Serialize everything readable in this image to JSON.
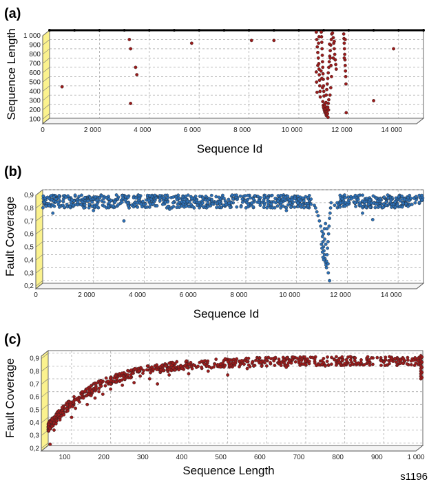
{
  "footer_text": "s1196",
  "colors": {
    "red": "#9b1b1b",
    "blue": "#2c6fb5",
    "yellow": "#fbf28e"
  },
  "chart_data": [
    {
      "id": "a",
      "panel_label": "(a)",
      "type": "scatter",
      "xlabel": "Sequence Id",
      "ylabel": "Sequence Length",
      "xlim": [
        0,
        15000
      ],
      "ylim": [
        50,
        1000
      ],
      "xticks": [
        0,
        2000,
        4000,
        6000,
        8000,
        10000,
        12000,
        14000
      ],
      "xtick_labels": [
        "0",
        "2 000",
        "4 000",
        "6 000",
        "8 000",
        "10 000",
        "12 000",
        "14 000"
      ],
      "yticks": [
        100,
        200,
        300,
        400,
        500,
        600,
        700,
        800,
        900,
        1000
      ],
      "ytick_labels": [
        "100",
        "200",
        "300",
        "400",
        "500",
        "600",
        "700",
        "800",
        "900",
        "1 000"
      ],
      "grid": true,
      "series": [
        {
          "color": "#000000",
          "points": [
            [
              0,
              1000
            ],
            [
              1000,
              1000
            ],
            [
              2000,
              1000
            ],
            [
              3000,
              1000
            ],
            [
              4000,
              1000
            ],
            [
              5000,
              1000
            ],
            [
              6000,
              1000
            ],
            [
              7000,
              1000
            ],
            [
              8000,
              1000
            ],
            [
              9000,
              1000
            ],
            [
              10000,
              1000
            ],
            [
              11000,
              1000
            ],
            [
              12000,
              1000
            ],
            [
              13000,
              1000
            ],
            [
              14000,
              1000
            ],
            [
              15000,
              1000
            ]
          ]
        },
        {
          "color": "#9b1b1b",
          "points": [
            [
              500,
              390
            ],
            [
              3200,
              900
            ],
            [
              3250,
              800
            ],
            [
              3250,
              210
            ],
            [
              3450,
              600
            ],
            [
              3500,
              520
            ],
            [
              5700,
              860
            ],
            [
              8100,
              890
            ],
            [
              9000,
              890
            ],
            [
              13000,
              240
            ],
            [
              13800,
              800
            ],
            [
              10700,
              980
            ],
            [
              10720,
              900
            ],
            [
              10740,
              820
            ],
            [
              10760,
              760
            ],
            [
              10780,
              700
            ],
            [
              10800,
              640
            ],
            [
              10810,
              580
            ],
            [
              10820,
              520
            ],
            [
              10830,
              460
            ],
            [
              10840,
              400
            ],
            [
              10850,
              340
            ],
            [
              10860,
              280
            ],
            [
              10700,
              550
            ],
            [
              10710,
              440
            ],
            [
              10730,
              330
            ],
            [
              10760,
              620
            ],
            [
              10790,
              860
            ],
            [
              10810,
              930
            ],
            [
              10900,
              980
            ],
            [
              10910,
              930
            ],
            [
              10920,
              870
            ],
            [
              10930,
              800
            ],
            [
              10940,
              730
            ],
            [
              10950,
              660
            ],
            [
              10960,
              600
            ],
            [
              10970,
              530
            ],
            [
              10980,
              470
            ],
            [
              10990,
              400
            ],
            [
              11000,
              340
            ],
            [
              11010,
              290
            ],
            [
              10890,
              560
            ],
            [
              10920,
              480
            ],
            [
              10950,
              380
            ],
            [
              10960,
              230
            ],
            [
              10980,
              190
            ],
            [
              11000,
              160
            ],
            [
              11020,
              140
            ],
            [
              11040,
              120
            ],
            [
              11060,
              110
            ],
            [
              11080,
              100
            ],
            [
              11100,
              80
            ],
            [
              11120,
              90
            ],
            [
              11140,
              130
            ],
            [
              11160,
              170
            ],
            [
              11180,
              210
            ],
            [
              11200,
              250
            ],
            [
              10990,
              170
            ],
            [
              11030,
              200
            ],
            [
              11070,
              150
            ],
            [
              11110,
              120
            ],
            [
              11150,
              100
            ],
            [
              11190,
              140
            ],
            [
              11050,
              180
            ],
            [
              11090,
              220
            ],
            [
              11130,
              160
            ],
            [
              11170,
              60
            ],
            [
              11100,
              300
            ],
            [
              11120,
              360
            ],
            [
              11140,
              420
            ],
            [
              11160,
              480
            ],
            [
              11180,
              540
            ],
            [
              11200,
              600
            ],
            [
              11220,
              660
            ],
            [
              11240,
              720
            ],
            [
              11260,
              780
            ],
            [
              11280,
              840
            ],
            [
              11300,
              900
            ],
            [
              11320,
              960
            ],
            [
              11230,
              850
            ],
            [
              11260,
              700
            ],
            [
              11290,
              620
            ],
            [
              11310,
              500
            ],
            [
              11280,
              380
            ],
            [
              11250,
              300
            ],
            [
              11350,
              970
            ],
            [
              11380,
              920
            ],
            [
              11400,
              860
            ],
            [
              11420,
              800
            ],
            [
              11440,
              740
            ],
            [
              11460,
              680
            ],
            [
              11480,
              630
            ],
            [
              11500,
              580
            ],
            [
              11380,
              700
            ],
            [
              11420,
              880
            ],
            [
              11800,
              960
            ],
            [
              11810,
              910
            ],
            [
              11820,
              860
            ],
            [
              11830,
              800
            ],
            [
              11840,
              740
            ],
            [
              11850,
              680
            ],
            [
              11860,
              620
            ],
            [
              11870,
              560
            ],
            [
              11880,
              500
            ],
            [
              11890,
              420
            ],
            [
              11820,
              700
            ],
            [
              11860,
              900
            ],
            [
              11900,
              110
            ]
          ]
        }
      ]
    },
    {
      "id": "b",
      "panel_label": "(b)",
      "type": "scatter",
      "xlabel": "Sequence Id",
      "ylabel": "Fault Coverage",
      "xlim": [
        0,
        15000
      ],
      "ylim": [
        0.18,
        0.9
      ],
      "xticks": [
        0,
        2000,
        4000,
        6000,
        8000,
        10000,
        12000,
        14000
      ],
      "xtick_labels": [
        "0",
        "2 000",
        "4 000",
        "6 000",
        "8 000",
        "10 000",
        "12 000",
        "14 000"
      ],
      "yticks": [
        0.2,
        0.3,
        0.4,
        0.5,
        0.6,
        0.7,
        0.8,
        0.9
      ],
      "ytick_labels": [
        "0,2",
        "0,3",
        "0,4",
        "0,5",
        "0,6",
        "0,7",
        "0,8",
        "0,9"
      ],
      "grid": true,
      "series": [
        {
          "color": "#2c6fb5",
          "band": {
            "x": [
              0,
              15000
            ],
            "y": [
              0.76,
              0.86
            ],
            "count": 900,
            "gap": [
              10600,
              11600
            ]
          },
          "points": [
            [
              3200,
              0.66
            ],
            [
              400,
              0.72
            ],
            [
              2000,
              0.74
            ],
            [
              5000,
              0.75
            ],
            [
              13000,
              0.67
            ],
            [
              12600,
              0.72
            ],
            [
              9600,
              0.74
            ],
            [
              10700,
              0.78
            ],
            [
              10750,
              0.76
            ],
            [
              10800,
              0.73
            ],
            [
              10850,
              0.7
            ],
            [
              10900,
              0.66
            ],
            [
              10950,
              0.62
            ],
            [
              11000,
              0.58
            ],
            [
              11020,
              0.54
            ],
            [
              11040,
              0.5
            ],
            [
              11060,
              0.46
            ],
            [
              11080,
              0.43
            ],
            [
              11100,
              0.4
            ],
            [
              11120,
              0.37
            ],
            [
              11140,
              0.34
            ],
            [
              11160,
              0.32
            ],
            [
              11180,
              0.35
            ],
            [
              11200,
              0.4
            ],
            [
              11220,
              0.45
            ],
            [
              11240,
              0.5
            ],
            [
              11260,
              0.56
            ],
            [
              11280,
              0.62
            ],
            [
              11300,
              0.68
            ],
            [
              11320,
              0.72
            ],
            [
              11340,
              0.76
            ],
            [
              11360,
              0.8
            ],
            [
              11000,
              0.45
            ],
            [
              11020,
              0.42
            ],
            [
              11040,
              0.38
            ],
            [
              10980,
              0.48
            ],
            [
              11060,
              0.56
            ],
            [
              11100,
              0.6
            ],
            [
              11140,
              0.64
            ],
            [
              11200,
              0.6
            ],
            [
              11240,
              0.33
            ],
            [
              11180,
              0.3
            ],
            [
              11300,
              0.2
            ],
            [
              11250,
              0.26
            ],
            [
              11150,
              0.48
            ],
            [
              11110,
              0.52
            ],
            [
              11070,
              0.36
            ],
            [
              11500,
              0.78
            ],
            [
              11600,
              0.8
            ],
            [
              11800,
              0.83
            ]
          ]
        }
      ]
    },
    {
      "id": "c",
      "panel_label": "(c)",
      "type": "scatter",
      "xlabel": "Sequence Length",
      "ylabel": "Fault Coverage",
      "xlim": [
        40,
        1000
      ],
      "ylim": [
        0.18,
        0.92
      ],
      "xticks": [
        100,
        200,
        300,
        400,
        500,
        600,
        700,
        800,
        900,
        1000
      ],
      "xtick_labels": [
        "100",
        "200",
        "300",
        "400",
        "500",
        "600",
        "700",
        "800",
        "900",
        "1 000"
      ],
      "yticks": [
        0.2,
        0.3,
        0.4,
        0.5,
        0.6,
        0.7,
        0.8,
        0.9
      ],
      "ytick_labels": [
        "0,2",
        "0,3",
        "0,4",
        "0,5",
        "0,6",
        "0,7",
        "0,8",
        "0,9"
      ],
      "grid": true,
      "series": [
        {
          "color": "#9b1b1b",
          "trend": {
            "x": [
              40,
              995
            ],
            "count": 700,
            "spread": 0.035
          },
          "points": [
            [
              45,
              0.19
            ],
            [
              50,
              0.33
            ],
            [
              55,
              0.3
            ],
            [
              60,
              0.35
            ],
            [
              70,
              0.38
            ],
            [
              80,
              0.42
            ],
            [
              90,
              0.45
            ],
            [
              100,
              0.4
            ],
            [
              110,
              0.47
            ],
            [
              120,
              0.52
            ],
            [
              130,
              0.55
            ],
            [
              140,
              0.5
            ],
            [
              150,
              0.57
            ],
            [
              160,
              0.55
            ],
            [
              170,
              0.6
            ],
            [
              180,
              0.58
            ],
            [
              200,
              0.62
            ],
            [
              230,
              0.65
            ],
            [
              260,
              0.67
            ],
            [
              300,
              0.7
            ],
            [
              320,
              0.66
            ],
            [
              350,
              0.73
            ],
            [
              400,
              0.74
            ],
            [
              450,
              0.76
            ],
            [
              500,
              0.73
            ],
            [
              550,
              0.78
            ],
            [
              600,
              0.8
            ],
            [
              650,
              0.79
            ],
            [
              700,
              0.81
            ],
            [
              750,
              0.8
            ],
            [
              800,
              0.82
            ],
            [
              850,
              0.81
            ],
            [
              900,
              0.83
            ],
            [
              950,
              0.82
            ],
            [
              995,
              0.7
            ],
            [
              995,
              0.72
            ],
            [
              995,
              0.74
            ],
            [
              995,
              0.76
            ],
            [
              995,
              0.78
            ],
            [
              995,
              0.8
            ],
            [
              995,
              0.82
            ],
            [
              995,
              0.84
            ],
            [
              995,
              0.86
            ],
            [
              995,
              0.88
            ],
            [
              998,
              0.71
            ],
            [
              998,
              0.75
            ],
            [
              998,
              0.79
            ],
            [
              998,
              0.83
            ],
            [
              998,
              0.87
            ]
          ]
        }
      ]
    }
  ]
}
